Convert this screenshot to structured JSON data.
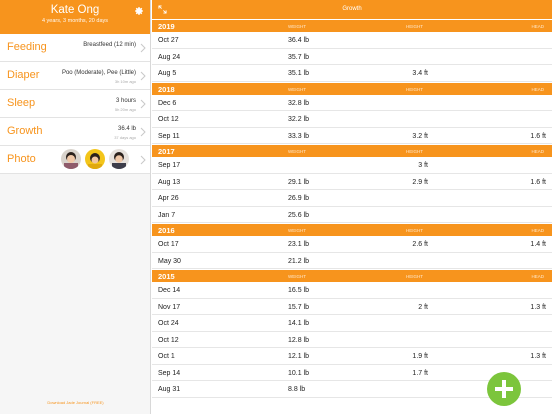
{
  "profile": {
    "name": "Kate Ong",
    "age": "4 years, 3 months, 20 days"
  },
  "menu": {
    "feeding": {
      "label": "Feeding",
      "value": "Breastfeed (12 min)",
      "ago": ""
    },
    "diaper": {
      "label": "Diaper",
      "value": "Poo (Moderate), Pee (Little)",
      "ago": "3h 10m ago"
    },
    "sleep": {
      "label": "Sleep",
      "value": "3 hours",
      "ago": "5h 20m ago"
    },
    "growth": {
      "label": "Growth",
      "value": "36.4 lb",
      "ago": "37 days ago"
    },
    "photo": {
      "label": "Photo"
    }
  },
  "download_link": "Download Jade Journal (FREE)",
  "header": {
    "title": "Growth"
  },
  "columns": {
    "weight": "WEIGHT",
    "height": "HEIGHT",
    "head": "HEAD"
  },
  "years": [
    {
      "year": "2019",
      "rows": [
        {
          "date": "Oct 27",
          "weight": "36.4 lb",
          "height": "",
          "head": ""
        },
        {
          "date": "Aug 24",
          "weight": "35.7 lb",
          "height": "",
          "head": ""
        },
        {
          "date": "Aug 5",
          "weight": "35.1 lb",
          "height": "3.4 ft",
          "head": ""
        }
      ]
    },
    {
      "year": "2018",
      "rows": [
        {
          "date": "Dec 6",
          "weight": "32.8 lb",
          "height": "",
          "head": ""
        },
        {
          "date": "Oct 12",
          "weight": "32.2 lb",
          "height": "",
          "head": ""
        },
        {
          "date": "Sep 11",
          "weight": "33.3 lb",
          "height": "3.2 ft",
          "head": "1.6 ft"
        }
      ]
    },
    {
      "year": "2017",
      "rows": [
        {
          "date": "Sep 17",
          "weight": "",
          "height": "3 ft",
          "head": ""
        },
        {
          "date": "Aug 13",
          "weight": "29.1 lb",
          "height": "2.9 ft",
          "head": "1.6 ft"
        },
        {
          "date": "Apr 26",
          "weight": "26.9 lb",
          "height": "",
          "head": ""
        },
        {
          "date": "Jan 7",
          "weight": "25.6 lb",
          "height": "",
          "head": ""
        }
      ]
    },
    {
      "year": "2016",
      "rows": [
        {
          "date": "Oct 17",
          "weight": "23.1 lb",
          "height": "2.6 ft",
          "head": "1.4 ft"
        },
        {
          "date": "May 30",
          "weight": "21.2 lb",
          "height": "",
          "head": ""
        }
      ]
    },
    {
      "year": "2015",
      "rows": [
        {
          "date": "Dec 14",
          "weight": "16.5 lb",
          "height": "",
          "head": ""
        },
        {
          "date": "Nov 17",
          "weight": "15.7 lb",
          "height": "2 ft",
          "head": "1.3 ft"
        },
        {
          "date": "Oct 24",
          "weight": "14.1 lb",
          "height": "",
          "head": ""
        },
        {
          "date": "Oct 12",
          "weight": "12.8 lb",
          "height": "",
          "head": ""
        },
        {
          "date": "Oct 1",
          "weight": "12.1 lb",
          "height": "1.9 ft",
          "head": "1.3 ft"
        },
        {
          "date": "Sep 14",
          "weight": "10.1 lb",
          "height": "1.7 ft",
          "head": ""
        },
        {
          "date": "Aug 31",
          "weight": "8.8 lb",
          "height": "",
          "head": ""
        }
      ]
    }
  ],
  "colors": {
    "accent": "#f7941d",
    "fab": "#7cc53c"
  },
  "icons": {
    "settings": "gear-icon",
    "expand": "expand-icon",
    "add": "plus-icon",
    "chevron": "chevron-right-icon"
  }
}
